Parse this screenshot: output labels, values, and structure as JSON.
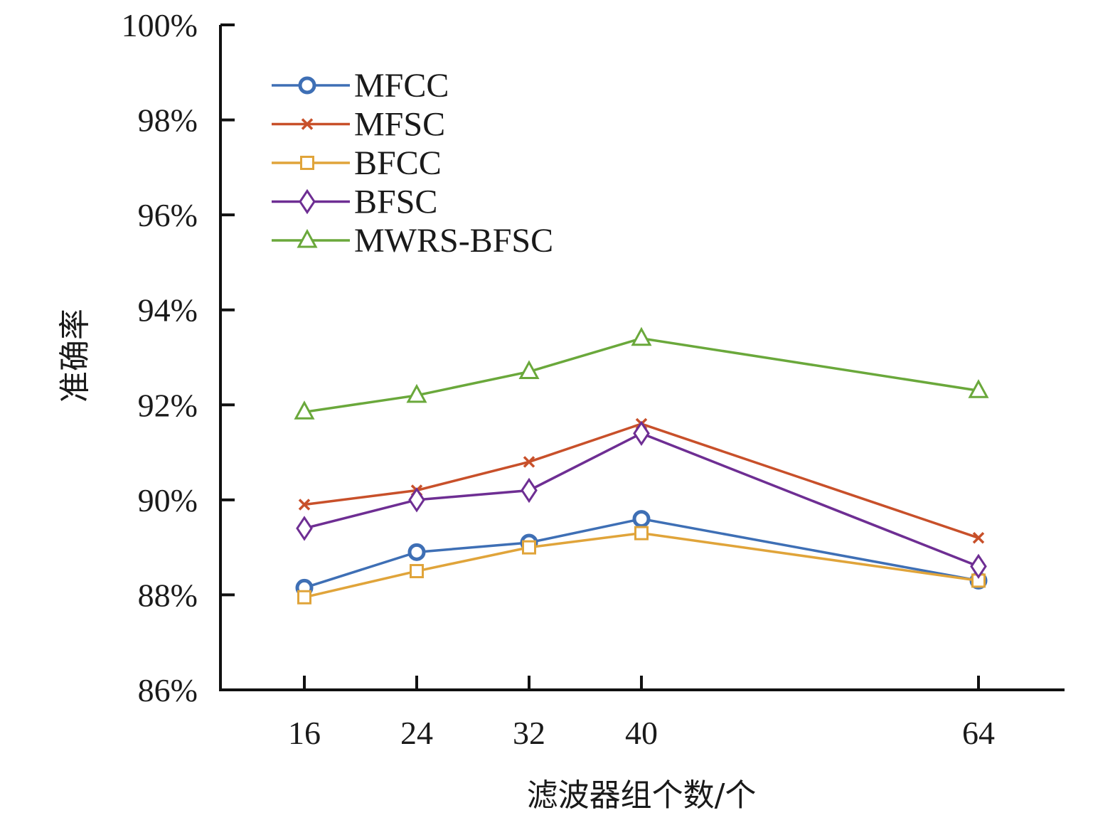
{
  "chart_data": {
    "type": "line",
    "xlabel": "滤波器组个数/个",
    "ylabel": "准确率",
    "x": [
      16,
      24,
      32,
      40,
      64
    ],
    "xticks": [
      "16",
      "24",
      "32",
      "40",
      "64"
    ],
    "xlim": [
      10,
      71
    ],
    "ylim": [
      86,
      100
    ],
    "yticks": [
      86,
      88,
      90,
      92,
      94,
      96,
      98,
      100
    ],
    "ytick_suffix": "%",
    "grid": false,
    "legend_position": "top-left",
    "series": [
      {
        "name": "MFCC",
        "marker": "circle",
        "color": "#3e6fb5",
        "values": [
          88.15,
          88.9,
          89.1,
          89.6,
          88.3
        ]
      },
      {
        "name": "MFSC",
        "marker": "x",
        "color": "#c8502a",
        "values": [
          89.9,
          90.2,
          90.8,
          91.6,
          89.2
        ]
      },
      {
        "name": "BFCC",
        "marker": "square",
        "color": "#e0a43a",
        "values": [
          87.95,
          88.5,
          89.0,
          89.3,
          88.3
        ]
      },
      {
        "name": "BFSC",
        "marker": "diamond",
        "color": "#6e2e93",
        "values": [
          89.4,
          90.0,
          90.2,
          91.4,
          88.6
        ]
      },
      {
        "name": "MWRS-BFSC",
        "marker": "triangle",
        "color": "#6aa83b",
        "values": [
          91.85,
          92.2,
          92.7,
          93.4,
          92.3
        ]
      }
    ]
  }
}
